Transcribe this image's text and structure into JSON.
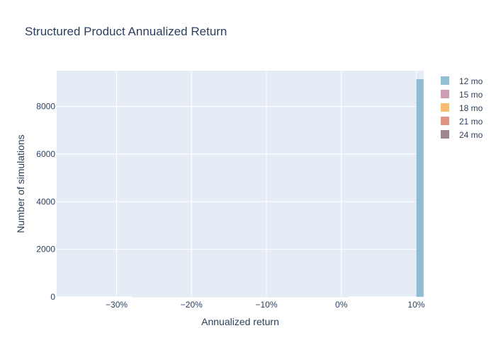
{
  "chart_data": {
    "type": "bar",
    "title": "Structured Product Annualized Return",
    "xlabel": "Annualized return",
    "ylabel": "Number of simulations",
    "xlim": [
      -0.38,
      0.11
    ],
    "ylim": [
      0,
      9500
    ],
    "x_ticks": [
      -0.3,
      -0.2,
      -0.1,
      0,
      0.1
    ],
    "x_tick_labels": [
      "−30%",
      "−20%",
      "−10%",
      "0%",
      "10%"
    ],
    "y_ticks": [
      0,
      2000,
      4000,
      6000,
      8000
    ],
    "y_tick_labels": [
      "0",
      "2000",
      "4000",
      "6000",
      "8000"
    ],
    "grid": true,
    "bar_mode": "overlay",
    "legend_position": "right",
    "series": [
      {
        "name": "24 mo",
        "color": "#8e727d",
        "bins": [
          {
            "x0": -0.28,
            "x1": -0.27,
            "count": 12
          },
          {
            "x0": -0.27,
            "x1": -0.26,
            "count": 10
          },
          {
            "x0": -0.26,
            "x1": -0.25,
            "count": 11
          },
          {
            "x0": -0.25,
            "x1": -0.24,
            "count": 9
          },
          {
            "x0": -0.24,
            "x1": -0.23,
            "count": 10
          },
          {
            "x0": -0.23,
            "x1": -0.22,
            "count": 9
          },
          {
            "x0": -0.22,
            "x1": -0.21,
            "count": 11
          },
          {
            "x0": -0.21,
            "x1": -0.2,
            "count": 10
          },
          {
            "x0": -0.2,
            "x1": -0.19,
            "count": 9
          },
          {
            "x0": -0.19,
            "x1": -0.18,
            "count": 10
          },
          {
            "x0": -0.18,
            "x1": -0.17,
            "count": 9
          },
          {
            "x0": -0.17,
            "x1": -0.16,
            "count": 10
          },
          {
            "x0": -0.16,
            "x1": -0.15,
            "count": 8
          },
          {
            "x0": -0.15,
            "x1": -0.14,
            "count": 9
          },
          {
            "x0": -0.14,
            "x1": -0.13,
            "count": 8
          },
          {
            "x0": -0.13,
            "x1": -0.12,
            "count": 9
          },
          {
            "x0": -0.12,
            "x1": -0.11,
            "count": 8
          },
          {
            "x0": -0.11,
            "x1": -0.1,
            "count": 8
          },
          {
            "x0": -0.1,
            "x1": -0.09,
            "count": 7
          },
          {
            "x0": -0.09,
            "x1": -0.08,
            "count": 8
          },
          {
            "x0": -0.08,
            "x1": -0.07,
            "count": 7
          },
          {
            "x0": -0.07,
            "x1": -0.06,
            "count": 7
          },
          {
            "x0": -0.06,
            "x1": -0.05,
            "count": 6
          },
          {
            "x0": -0.05,
            "x1": -0.04,
            "count": 6
          },
          {
            "x0": -0.04,
            "x1": -0.03,
            "count": 6
          },
          {
            "x0": -0.03,
            "x1": -0.02,
            "count": 5
          },
          {
            "x0": -0.02,
            "x1": -0.01,
            "count": 5
          },
          {
            "x0": -0.01,
            "x1": 0.0,
            "count": 5
          },
          {
            "x0": 0.0,
            "x1": 0.01,
            "count": 4
          }
        ]
      },
      {
        "name": "21 mo",
        "color": "#d9826e",
        "bins": [
          {
            "x0": -0.25,
            "x1": -0.24,
            "count": 8
          },
          {
            "x0": -0.22,
            "x1": -0.21,
            "count": 7
          },
          {
            "x0": -0.19,
            "x1": -0.18,
            "count": 7
          },
          {
            "x0": -0.16,
            "x1": -0.15,
            "count": 6
          },
          {
            "x0": -0.13,
            "x1": -0.12,
            "count": 6
          },
          {
            "x0": -0.1,
            "x1": -0.09,
            "count": 5
          },
          {
            "x0": -0.07,
            "x1": -0.06,
            "count": 5
          },
          {
            "x0": -0.04,
            "x1": -0.03,
            "count": 4
          }
        ]
      },
      {
        "name": "18 mo",
        "color": "#f2b25a",
        "bins": [
          {
            "x0": -0.2,
            "x1": -0.19,
            "count": 4
          },
          {
            "x0": -0.12,
            "x1": -0.11,
            "count": 4
          },
          {
            "x0": -0.05,
            "x1": -0.04,
            "count": 3
          }
        ]
      },
      {
        "name": "15 mo",
        "color": "#c68ba8",
        "bins": [
          {
            "x0": -0.15,
            "x1": -0.14,
            "count": 3
          },
          {
            "x0": -0.08,
            "x1": -0.07,
            "count": 3
          }
        ]
      },
      {
        "name": "12 mo",
        "color": "#7fb5cc",
        "bins": [
          {
            "x0": 0.1,
            "x1": 0.11,
            "count": 9150
          }
        ]
      }
    ]
  }
}
